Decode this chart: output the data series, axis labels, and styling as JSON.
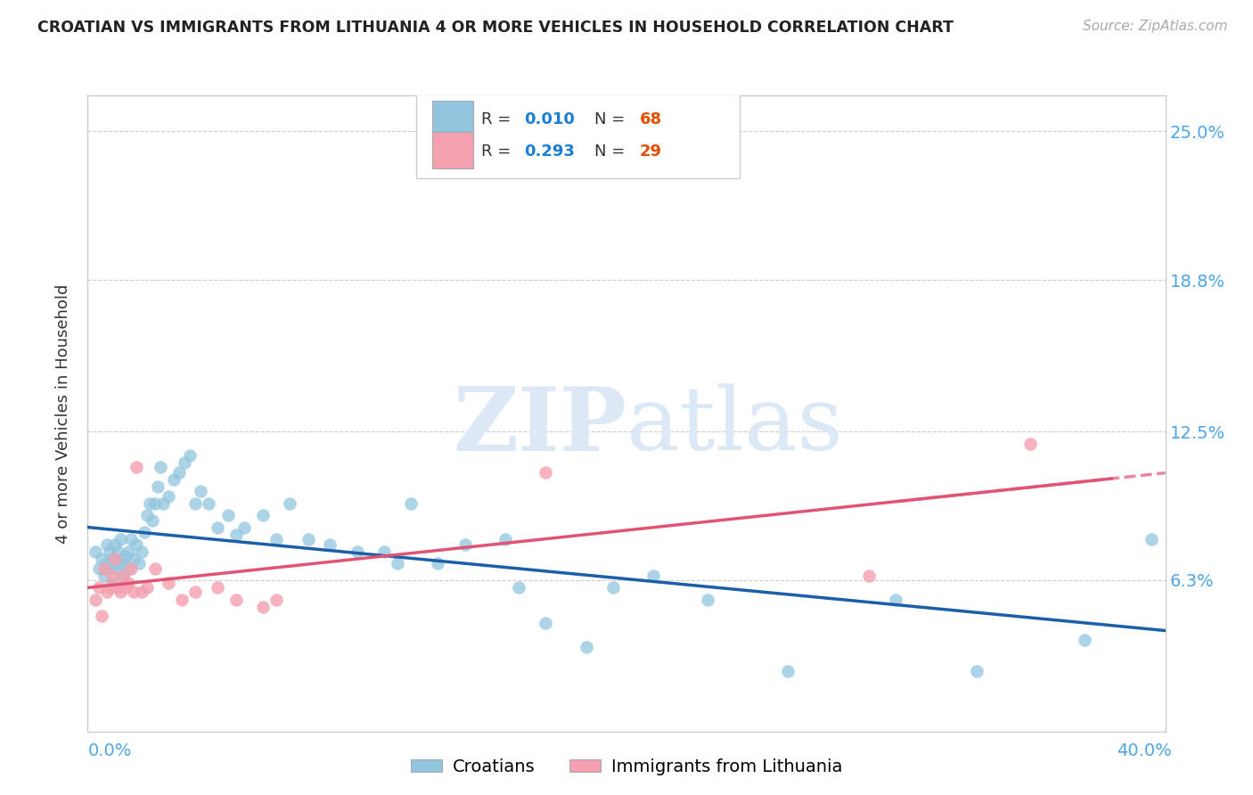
{
  "title": "CROATIAN VS IMMIGRANTS FROM LITHUANIA 4 OR MORE VEHICLES IN HOUSEHOLD CORRELATION CHART",
  "source": "Source: ZipAtlas.com",
  "ylabel": "4 or more Vehicles in Household",
  "ytick_labels": [
    "6.3%",
    "12.5%",
    "18.8%",
    "25.0%"
  ],
  "ytick_values": [
    0.063,
    0.125,
    0.188,
    0.25
  ],
  "xlim": [
    0.0,
    0.4
  ],
  "ylim": [
    0.0,
    0.265
  ],
  "color_blue": "#92c5de",
  "color_pink": "#f4a0b0",
  "line_blue": "#1a5fa8",
  "line_pink": "#e05575",
  "watermark_color": "#dce8f5",
  "croatians_x": [
    0.003,
    0.004,
    0.005,
    0.006,
    0.007,
    0.007,
    0.008,
    0.008,
    0.009,
    0.009,
    0.01,
    0.01,
    0.011,
    0.012,
    0.012,
    0.013,
    0.013,
    0.014,
    0.015,
    0.015,
    0.016,
    0.017,
    0.018,
    0.019,
    0.02,
    0.021,
    0.022,
    0.023,
    0.024,
    0.025,
    0.026,
    0.027,
    0.028,
    0.03,
    0.032,
    0.034,
    0.036,
    0.038,
    0.04,
    0.042,
    0.045,
    0.048,
    0.052,
    0.055,
    0.058,
    0.065,
    0.07,
    0.075,
    0.082,
    0.09,
    0.1,
    0.11,
    0.115,
    0.12,
    0.13,
    0.14,
    0.155,
    0.16,
    0.17,
    0.185,
    0.195,
    0.21,
    0.23,
    0.26,
    0.3,
    0.33,
    0.37,
    0.395
  ],
  "croatians_y": [
    0.075,
    0.068,
    0.072,
    0.065,
    0.07,
    0.078,
    0.075,
    0.068,
    0.062,
    0.072,
    0.078,
    0.068,
    0.075,
    0.08,
    0.07,
    0.072,
    0.065,
    0.073,
    0.068,
    0.075,
    0.08,
    0.072,
    0.078,
    0.07,
    0.075,
    0.083,
    0.09,
    0.095,
    0.088,
    0.095,
    0.102,
    0.11,
    0.095,
    0.098,
    0.105,
    0.108,
    0.112,
    0.115,
    0.095,
    0.1,
    0.095,
    0.085,
    0.09,
    0.082,
    0.085,
    0.09,
    0.08,
    0.095,
    0.08,
    0.078,
    0.075,
    0.075,
    0.07,
    0.095,
    0.07,
    0.078,
    0.08,
    0.06,
    0.045,
    0.035,
    0.06,
    0.065,
    0.055,
    0.025,
    0.055,
    0.025,
    0.038,
    0.08
  ],
  "lithuania_x": [
    0.003,
    0.004,
    0.005,
    0.006,
    0.007,
    0.008,
    0.009,
    0.01,
    0.011,
    0.012,
    0.013,
    0.014,
    0.015,
    0.016,
    0.017,
    0.018,
    0.02,
    0.022,
    0.025,
    0.03,
    0.035,
    0.04,
    0.048,
    0.055,
    0.065,
    0.07,
    0.17,
    0.29,
    0.35
  ],
  "lithuania_y": [
    0.055,
    0.06,
    0.048,
    0.068,
    0.058,
    0.06,
    0.065,
    0.072,
    0.06,
    0.058,
    0.065,
    0.06,
    0.062,
    0.068,
    0.058,
    0.11,
    0.058,
    0.06,
    0.068,
    0.062,
    0.055,
    0.058,
    0.06,
    0.055,
    0.052,
    0.055,
    0.108,
    0.065,
    0.12
  ]
}
